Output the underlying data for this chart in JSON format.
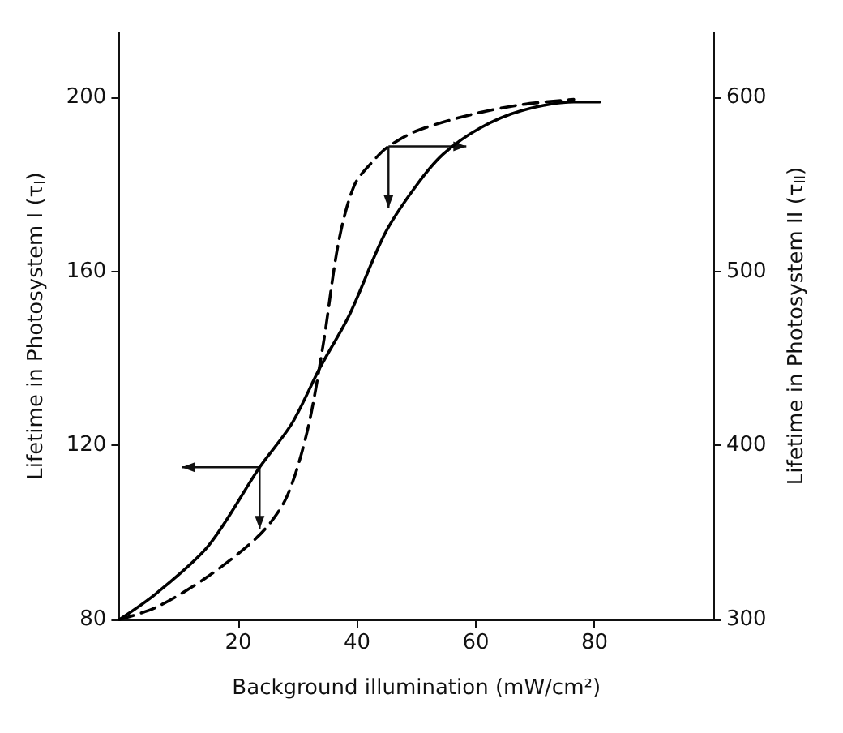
{
  "chart_data": {
    "type": "line",
    "xlabel": "Background illumination (mW/cm²)",
    "ylabel": "Lifetime in Photosystem I (τ$_{I}$)",
    "y2label": "Lifetime in Photosystem II (τ$_{II}$)",
    "xlim": [
      0,
      100
    ],
    "xticks": [
      20,
      40,
      60,
      80
    ],
    "ylim": [
      80,
      215
    ],
    "yticks": [
      80,
      120,
      160,
      200
    ],
    "y2lim": [
      300,
      637.5
    ],
    "y2ticks": [
      300,
      400,
      500,
      600
    ],
    "grid": false,
    "marker": "none",
    "series": [
      {
        "color": "#000000",
        "line_style": "solid",
        "x": [
          0,
          6.2,
          15,
          23.6,
          29,
          33.8,
          38.7,
          44.8,
          50.1,
          54.5,
          60.7,
          67.7,
          76.5,
          80.9
        ],
        "values": [
          80,
          86,
          97,
          115,
          125,
          138,
          150,
          169,
          180,
          187,
          193,
          197,
          199,
          199
        ]
      },
      {
        "color": "#000000",
        "line_style": "dashed",
        "axis": "y2",
        "x": [
          0,
          6.2,
          15,
          23.7,
          28.1,
          31.6,
          34.3,
          36.9,
          39.6,
          43.1,
          45.3,
          50.1,
          58.9,
          67.7,
          76.5
        ],
        "values": [
          300,
          307,
          325,
          349,
          370,
          408,
          458,
          517,
          550,
          565,
          572,
          581,
          590,
          596,
          599
        ]
      }
    ]
  }
}
